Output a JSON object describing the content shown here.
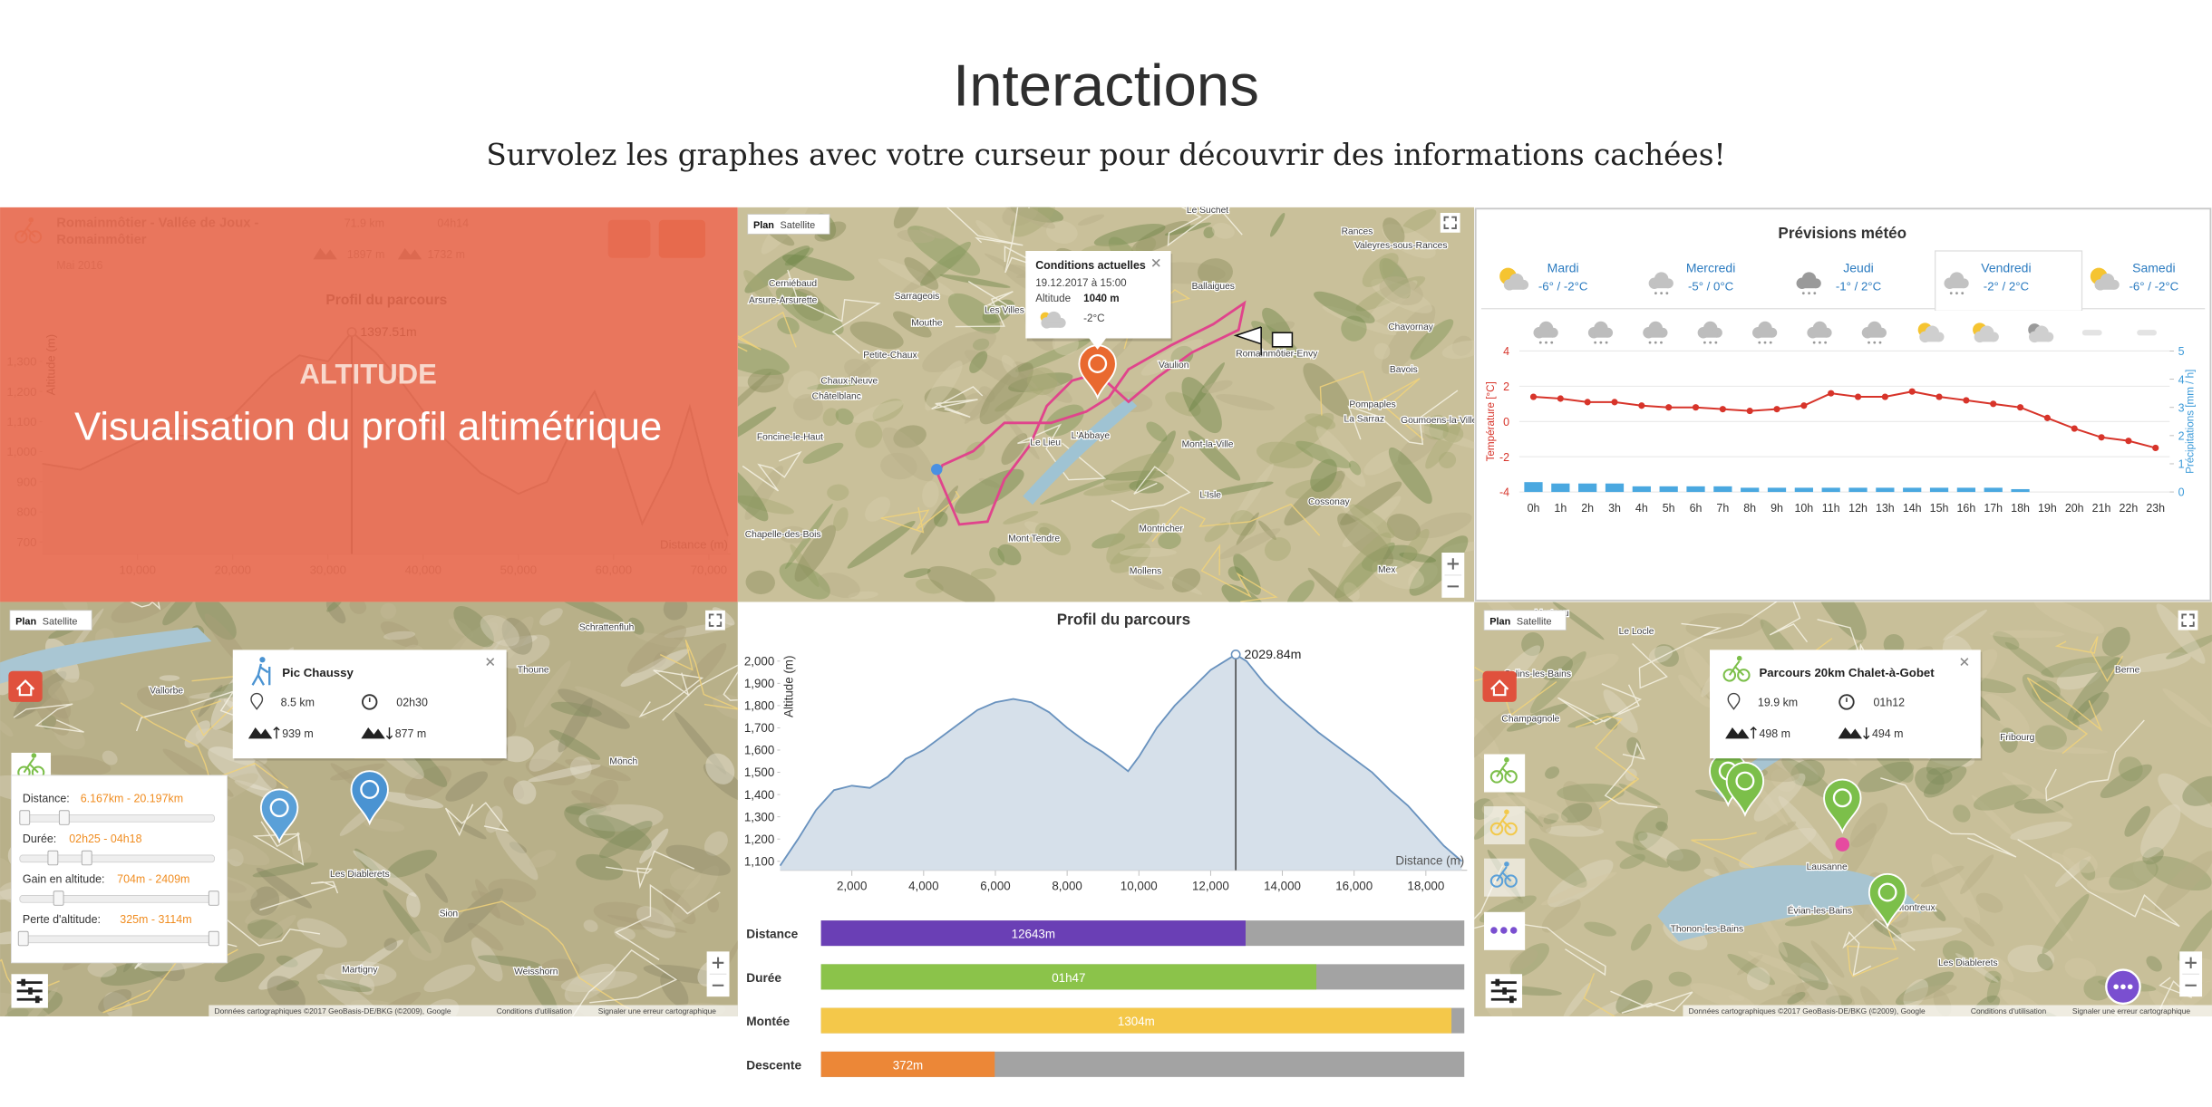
{
  "header": {
    "title": "Interactions",
    "subtitle": "Survolez les graphes avec votre curseur pour découvrir des informations cachées!"
  },
  "common": {
    "map_tabs": [
      "Plan",
      "Satellite"
    ],
    "map_credits": [
      "Données cartographiques ©2017 GeoBasis-DE/BKG (©2009), Google",
      "Conditions d'utilisation",
      "Signaler une erreur cartographique"
    ]
  },
  "panels": {
    "altitude": {
      "route_lines": [
        "Romainmôtier - Vallée de Joux -",
        "Romainmôtier"
      ],
      "date": "Mai 2016",
      "distance": "71.9 km",
      "duration": "04h14",
      "ascent": "1897 m",
      "descent": "1732 m",
      "overlay_kicker": "ALTITUDE",
      "overlay_title": "Visualisation du profil altimétrique",
      "chart_data": {
        "type": "area",
        "title": "Profil du parcours",
        "y_label": "Altitude (m)",
        "x_label": "Distance (m)",
        "x": [
          0,
          4000,
          8000,
          12000,
          16000,
          20000,
          24000,
          27000,
          30000,
          32500,
          35000,
          38000,
          42000,
          46000,
          50000,
          53000,
          56000,
          58000,
          60000,
          63000,
          66000,
          68000,
          70000,
          72000
        ],
        "values": [
          960,
          940,
          1000,
          1060,
          1050,
          1120,
          1250,
          1320,
          1300,
          1397.51,
          1330,
          1220,
          1050,
          930,
          860,
          900,
          1100,
          1200,
          1050,
          760,
          950,
          1150,
          900,
          720
        ],
        "peak": {
          "x": 32500,
          "value": 1397.51,
          "label": "1397.51m"
        },
        "xlim": [
          0,
          72300
        ],
        "ylim": [
          660,
          1400
        ],
        "xticks": [
          {
            "value": 10000,
            "label": "10,000"
          },
          {
            "value": 20000,
            "label": "20,000"
          },
          {
            "value": 30000,
            "label": "30,000"
          },
          {
            "value": 40000,
            "label": "40,000"
          },
          {
            "value": 50000,
            "label": "50,000"
          },
          {
            "value": 60000,
            "label": "60,000"
          },
          {
            "value": 70000,
            "label": "70,000"
          }
        ],
        "yticks": [
          700,
          800,
          900,
          {
            "value": 1000,
            "label": "1,000"
          },
          {
            "value": 1100,
            "label": "1,100"
          },
          {
            "value": 1200,
            "label": "1,200"
          },
          {
            "value": 1300,
            "label": "1,300"
          }
        ],
        "color": "#8a8a8a"
      }
    },
    "conditions_map": {
      "popup": {
        "title": "Conditions actuelles",
        "datetime": "19.12.2017 à 15:00",
        "altitude_label": "Altitude",
        "altitude": "1040 m",
        "temperature": "-2°C"
      },
      "places": [
        "Le Suchet",
        "Rances",
        "Valeyres-sous-Rances",
        "Cerniébaud",
        "Sarrageois",
        "Arsure-Arsurette",
        "Les Villes",
        "Mouthe",
        "Chavornay",
        "Bavois",
        "Petite-Chaux",
        "Chaux-Neuve",
        "Châtelblanc",
        "Pompaples",
        "La Sarraz",
        "Goumoens-la-Ville",
        "Foncine-le-Haut",
        "L'Abbaye",
        "Le Lieu",
        "Mont-la-Ville",
        "L'Isle",
        "Cossonay",
        "Montricher",
        "Chapelle-des-Bois",
        "Mont Tendre",
        "Mollens",
        "Mex",
        "Romainmôtier-Envy",
        "Vaulion",
        "Ballaigues"
      ]
    },
    "weather": {
      "title": "Prévisions météo",
      "days": [
        {
          "name": "Mardi",
          "temps": "-6° / -2°C"
        },
        {
          "name": "Mercredi",
          "temps": "-5° / 0°C"
        },
        {
          "name": "Jeudi",
          "temps": "-1° / 2°C"
        },
        {
          "name": "Vendredi",
          "temps": "-2° / 2°C"
        },
        {
          "name": "Samedi",
          "temps": "-6° / -2°C"
        }
      ],
      "selected_day": 3,
      "chart_data": {
        "type": "line",
        "y_label": "Température [°C]",
        "y2_label": "Précipitations [mm / h]",
        "categories": [
          "0h",
          "1h",
          "2h",
          "3h",
          "4h",
          "5h",
          "6h",
          "7h",
          "8h",
          "9h",
          "10h",
          "11h",
          "12h",
          "13h",
          "14h",
          "15h",
          "16h",
          "17h",
          "18h",
          "19h",
          "20h",
          "21h",
          "22h",
          "23h"
        ],
        "series": [
          {
            "type": "line",
            "color": "#d7342a",
            "values": [
              1.4,
              1.3,
              1.1,
              1.1,
              0.9,
              0.8,
              0.8,
              0.7,
              0.6,
              0.7,
              0.9,
              1.6,
              1.4,
              1.4,
              1.7,
              1.4,
              1.2,
              1.0,
              0.8,
              0.2,
              -0.4,
              -0.9,
              -1.1,
              -1.5
            ]
          },
          {
            "type": "bar",
            "axis": "y2",
            "color": "#4aa8e0",
            "values": [
              0.35,
              0.3,
              0.3,
              0.3,
              0.2,
              0.2,
              0.2,
              0.2,
              0.15,
              0.15,
              0.15,
              0.15,
              0.15,
              0.15,
              0.15,
              0.15,
              0.15,
              0.15,
              0.1,
              0,
              0,
              0,
              0,
              0
            ]
          }
        ],
        "ylim": [
          -4,
          4
        ],
        "yticks": [
          -4,
          -2,
          0,
          2,
          4
        ],
        "y2lim": [
          0,
          5
        ],
        "y2ticks": [
          0,
          1,
          2,
          3,
          4,
          5
        ],
        "grid": true
      }
    },
    "filter_map": {
      "popup": {
        "title": "Pic Chaussy",
        "distance": "8.5 km",
        "duration": "02h30",
        "ascent": "939 m",
        "descent": "877 m"
      },
      "filters": [
        {
          "label": "Distance:",
          "range": "6.167km - 20.197km"
        },
        {
          "label": "Durée:",
          "range": "02h25 - 04h18"
        },
        {
          "label": "Gain en altitude:",
          "range": "704m - 2409m"
        },
        {
          "label": "Perte d'altitude:",
          "range": "325m - 3114m"
        }
      ],
      "places": [
        "Schrattenfluh",
        "Thoune",
        "Vallorbe",
        "Mönch",
        "Les Diablerets",
        "Sion",
        "Martigny",
        "Weisshorn"
      ]
    },
    "profile": {
      "chart_data": {
        "type": "area",
        "title": "Profil du parcours",
        "y_label": "Altitude (m)",
        "x_label": "Distance (m)",
        "x": [
          0,
          500,
          1000,
          1500,
          2000,
          2500,
          3000,
          3500,
          4000,
          4500,
          5000,
          5500,
          6000,
          6500,
          7000,
          7500,
          8000,
          8500,
          9000,
          9500,
          9700,
          10000,
          10500,
          11000,
          11500,
          12000,
          12500,
          12700,
          13000,
          13500,
          14000,
          14500,
          15000,
          15500,
          16000,
          16500,
          17000,
          17500,
          18000,
          18500,
          19000
        ],
        "values": [
          1080,
          1200,
          1330,
          1420,
          1440,
          1430,
          1480,
          1560,
          1600,
          1660,
          1720,
          1780,
          1815,
          1830,
          1815,
          1770,
          1700,
          1640,
          1590,
          1530,
          1505,
          1570,
          1700,
          1800,
          1880,
          1960,
          2010,
          2029.84,
          2000,
          1900,
          1820,
          1750,
          1680,
          1620,
          1560,
          1500,
          1420,
          1350,
          1260,
          1170,
          1100
        ],
        "peak": {
          "x": 12700,
          "value": 2029.84,
          "label": "2029.84m"
        },
        "xlim": [
          0,
          19150
        ],
        "ylim": [
          1060,
          2050
        ],
        "xticks": [
          {
            "value": 2000,
            "label": "2,000"
          },
          {
            "value": 4000,
            "label": "4,000"
          },
          {
            "value": 6000,
            "label": "6,000"
          },
          {
            "value": 8000,
            "label": "8,000"
          },
          {
            "value": 10000,
            "label": "10,000"
          },
          {
            "value": 12000,
            "label": "12,000"
          },
          {
            "value": 14000,
            "label": "14,000"
          },
          {
            "value": 16000,
            "label": "16,000"
          },
          {
            "value": 18000,
            "label": "18,000"
          }
        ],
        "yticks": [
          {
            "value": 1100,
            "label": "1,100"
          },
          {
            "value": 1200,
            "label": "1,200"
          },
          {
            "value": 1300,
            "label": "1,300"
          },
          {
            "value": 1400,
            "label": "1,400"
          },
          {
            "value": 1500,
            "label": "1,500"
          },
          {
            "value": 1600,
            "label": "1,600"
          },
          {
            "value": 1700,
            "label": "1,700"
          },
          {
            "value": 1800,
            "label": "1,800"
          },
          {
            "value": 1900,
            "label": "1,900"
          },
          {
            "value": 2000,
            "label": "2,000"
          }
        ],
        "color": "#6a93bf",
        "fill": "#d6e0ea"
      },
      "bars": [
        {
          "label": "Distance",
          "value_label": "12643m",
          "fill_percent": 66,
          "color": "#6a3fb5"
        },
        {
          "label": "Durée",
          "value_label": "01h47",
          "fill_percent": 77,
          "color": "#8bc34a"
        },
        {
          "label": "Montée",
          "value_label": "1304m",
          "fill_percent": 98,
          "color": "#f4c84a"
        },
        {
          "label": "Descente",
          "value_label": "372m",
          "fill_percent": 27,
          "color": "#ec8737"
        }
      ]
    },
    "route_map": {
      "popup": {
        "title": "Parcours 20km Chalet-à-Gobet",
        "distance": "19.9 km",
        "duration": "01h12",
        "ascent": "498 m",
        "descent": "494 m"
      },
      "places": [
        "Morteau",
        "Le Locle",
        "Berne",
        "Salins-les-Bains",
        "Champagnole",
        "Fribourg",
        "Lausanne",
        "Thonon-les-Bains",
        "Évian-les-Bains",
        "Montreux",
        "Les Diablerets"
      ]
    }
  }
}
